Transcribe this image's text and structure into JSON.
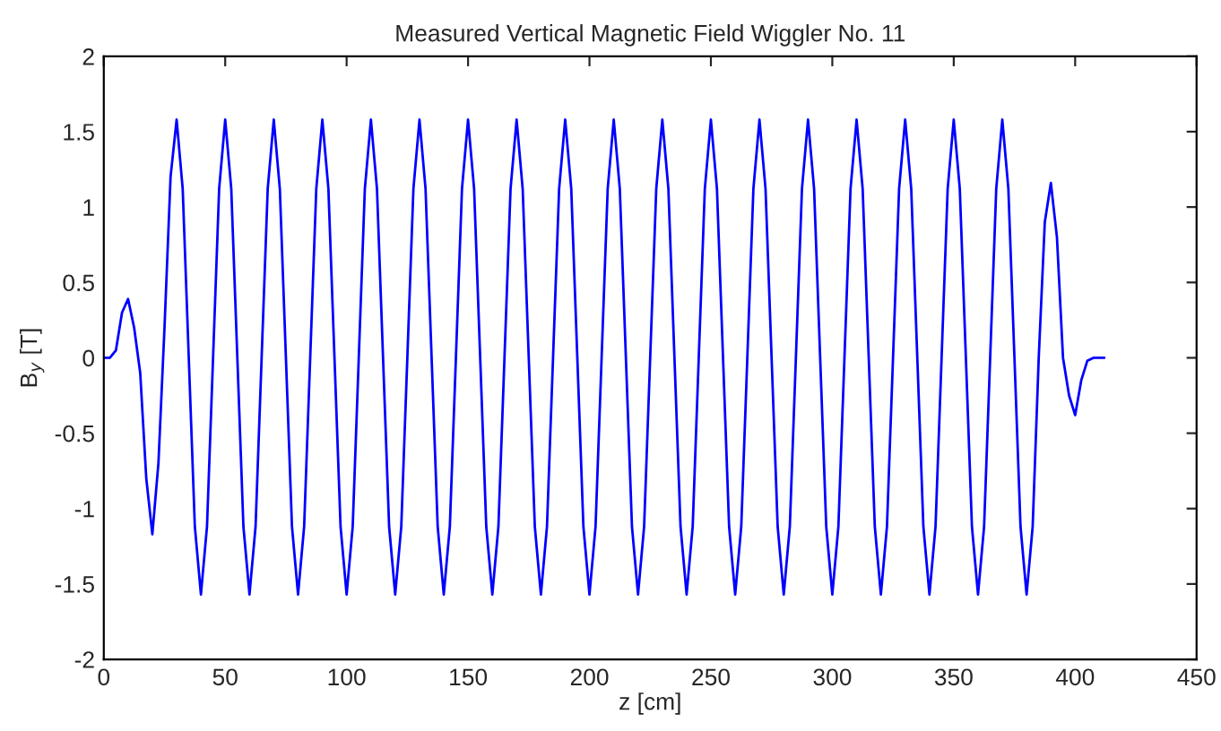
{
  "chart_data": {
    "type": "line",
    "title": "Measured Vertical Magnetic Field Wiggler No. 11",
    "xlabel": "z [cm]",
    "ylabel": "B$_{y}$ [T]",
    "xlim": [
      0,
      450
    ],
    "xticks": [
      0,
      50,
      100,
      150,
      200,
      250,
      300,
      350,
      400,
      450
    ],
    "ylim": [
      -2,
      2
    ],
    "yticks": [
      -2,
      -1.5,
      -1,
      -0.5,
      0,
      0.5,
      1,
      1.5,
      2
    ],
    "grid": false,
    "marker": "none",
    "line_style": "solid",
    "series": [
      {
        "color": "#0000ff",
        "x": [
          0,
          2.5,
          5,
          7.5,
          10,
          12.5,
          15,
          17.5,
          20,
          22.5,
          25,
          27.5,
          30,
          32.5,
          35,
          37.5,
          40,
          42.5,
          45,
          47.5,
          50,
          52.5,
          55,
          57.5,
          60,
          62.5,
          65,
          67.5,
          70,
          72.5,
          75,
          77.5,
          80,
          82.5,
          85,
          87.5,
          90,
          92.5,
          95,
          97.5,
          100,
          102.5,
          105,
          107.5,
          110,
          112.5,
          115,
          117.5,
          120,
          122.5,
          125,
          127.5,
          130,
          132.5,
          135,
          137.5,
          140,
          142.5,
          145,
          147.5,
          150,
          152.5,
          155,
          157.5,
          160,
          162.5,
          165,
          167.5,
          170,
          172.5,
          175,
          177.5,
          180,
          182.5,
          185,
          187.5,
          190,
          192.5,
          195,
          197.5,
          200,
          202.5,
          205,
          207.5,
          210,
          212.5,
          215,
          217.5,
          220,
          222.5,
          225,
          227.5,
          230,
          232.5,
          235,
          237.5,
          240,
          242.5,
          245,
          247.5,
          250,
          252.5,
          255,
          257.5,
          260,
          262.5,
          265,
          267.5,
          270,
          272.5,
          275,
          277.5,
          280,
          282.5,
          285,
          287.5,
          290,
          292.5,
          295,
          297.5,
          300,
          302.5,
          305,
          307.5,
          310,
          312.5,
          315,
          317.5,
          320,
          322.5,
          325,
          327.5,
          330,
          332.5,
          335,
          337.5,
          340,
          342.5,
          345,
          347.5,
          350,
          352.5,
          355,
          357.5,
          360,
          362.5,
          365,
          367.5,
          370,
          372.5,
          375,
          377.5,
          380,
          382.5,
          385,
          387.5,
          390,
          392.5,
          395,
          397.5,
          400,
          402.5,
          405,
          407.5,
          412
        ],
        "values": [
          0,
          0,
          0.05,
          0.3,
          0.39,
          0.2,
          -0.1,
          -0.8,
          -1.17,
          -0.7,
          0.2,
          1.2,
          1.58,
          1.12,
          0,
          -1.12,
          -1.57,
          -1.12,
          0,
          1.12,
          1.58,
          1.12,
          0,
          -1.12,
          -1.57,
          -1.12,
          0,
          1.12,
          1.58,
          1.12,
          0,
          -1.12,
          -1.57,
          -1.12,
          0,
          1.12,
          1.58,
          1.12,
          0,
          -1.12,
          -1.57,
          -1.12,
          0,
          1.12,
          1.58,
          1.12,
          0,
          -1.12,
          -1.57,
          -1.12,
          0,
          1.12,
          1.58,
          1.12,
          0,
          -1.12,
          -1.57,
          -1.12,
          0,
          1.12,
          1.58,
          1.12,
          0,
          -1.12,
          -1.57,
          -1.12,
          0,
          1.12,
          1.58,
          1.12,
          0,
          -1.12,
          -1.57,
          -1.12,
          0,
          1.12,
          1.58,
          1.12,
          0,
          -1.12,
          -1.57,
          -1.12,
          0,
          1.12,
          1.58,
          1.12,
          0,
          -1.12,
          -1.57,
          -1.12,
          0,
          1.12,
          1.58,
          1.12,
          0,
          -1.12,
          -1.57,
          -1.12,
          0,
          1.12,
          1.58,
          1.12,
          0,
          -1.12,
          -1.57,
          -1.12,
          0,
          1.12,
          1.58,
          1.12,
          0,
          -1.12,
          -1.57,
          -1.12,
          0,
          1.12,
          1.58,
          1.12,
          0,
          -1.12,
          -1.57,
          -1.12,
          0,
          1.12,
          1.58,
          1.12,
          0,
          -1.12,
          -1.57,
          -1.12,
          0,
          1.12,
          1.58,
          1.12,
          0,
          -1.12,
          -1.57,
          -1.12,
          0,
          1.12,
          1.58,
          1.12,
          0,
          -1.12,
          -1.57,
          -1.12,
          0,
          1.12,
          1.58,
          1.12,
          0,
          -1.12,
          -1.57,
          -1.12,
          0,
          0.9,
          1.16,
          0.8,
          0,
          -0.25,
          -0.38,
          -0.15,
          -0.02,
          0,
          0
        ]
      }
    ]
  }
}
